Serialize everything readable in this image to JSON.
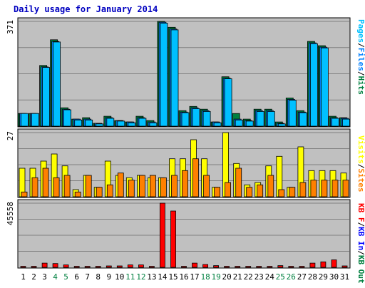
{
  "chart_data": {
    "type": "bar",
    "title": "Daily usage for January 2014",
    "categories": [
      "1",
      "2",
      "3",
      "4",
      "5",
      "6",
      "7",
      "8",
      "9",
      "10",
      "11",
      "12",
      "13",
      "14",
      "15",
      "16",
      "17",
      "18",
      "19",
      "20",
      "21",
      "22",
      "23",
      "24",
      "25",
      "26",
      "27",
      "28",
      "29",
      "30",
      "31"
    ],
    "weekend_days": [
      "4",
      "5",
      "11",
      "12",
      "18",
      "19",
      "25",
      "26"
    ],
    "panels": [
      {
        "name": "pages-files-hits",
        "ymax_label": "371",
        "ylim": [
          0,
          371
        ],
        "axis_labels": [
          "Pages",
          "Files",
          "Hits"
        ],
        "series": [
          {
            "name": "Hits",
            "color": "#008040",
            "values": [
              45,
              45,
              215,
              306,
              65,
              25,
              30,
              10,
              35,
              20,
              15,
              35,
              20,
              371,
              350,
              55,
              70,
              60,
              15,
              175,
              45,
              25,
              60,
              60,
              15,
              100,
              55,
              300,
              285,
              35,
              30
            ]
          },
          {
            "name": "Files",
            "color": "#0080ff",
            "values": [
              45,
              45,
              210,
              300,
              60,
              25,
              25,
              10,
              30,
              20,
              15,
              30,
              15,
              368,
              344,
              50,
              65,
              55,
              15,
              170,
              25,
              20,
              55,
              55,
              10,
              95,
              50,
              295,
              280,
              30,
              28
            ]
          },
          {
            "name": "Pages",
            "color": "#00c0ff",
            "values": [
              45,
              45,
              208,
              298,
              58,
              22,
              22,
              8,
              28,
              18,
              12,
              28,
              12,
              365,
              341,
              48,
              62,
              52,
              12,
              168,
              22,
              18,
              52,
              52,
              8,
              92,
              48,
              292,
              277,
              28,
              25
            ]
          }
        ]
      },
      {
        "name": "visits-sites",
        "ymax_label": "27",
        "ylim": [
          0,
          27
        ],
        "axis_labels": [
          "Visits",
          "Sites"
        ],
        "series": [
          {
            "name": "Visits",
            "color": "#ffff00",
            "values": [
              12,
              12,
              15,
              18,
              13,
              3,
              9,
              4,
              15,
              9,
              8,
              9,
              8,
              8,
              16,
              16,
              24,
              16,
              4,
              27,
              14,
              5,
              6,
              13,
              17,
              4,
              21,
              11,
              11,
              11,
              10
            ]
          },
          {
            "name": "Sites",
            "color": "#ff8000",
            "values": [
              2,
              8,
              12,
              8,
              9,
              2,
              9,
              4,
              5,
              10,
              7,
              9,
              9,
              8,
              9,
              11,
              16,
              9,
              4,
              6,
              12,
              4,
              5,
              9,
              3,
              4,
              6,
              7,
              7,
              7,
              7
            ]
          }
        ]
      },
      {
        "name": "kb",
        "ymax_label": "45558",
        "ylim": [
          0,
          45558
        ],
        "axis_labels": [
          "KB F",
          "KB In",
          "KB Out"
        ],
        "series": [
          {
            "name": "KB F",
            "color": "#ff0000",
            "values": [
              700,
              700,
              3000,
              2700,
              1700,
              700,
              700,
              700,
              1000,
              1000,
              1700,
              1700,
              700,
              45558,
              40000,
              700,
              3000,
              2000,
              1200,
              700,
              700,
              700,
              700,
              700,
              1200,
              700,
              700,
              3000,
              3900,
              5300,
              1000
            ]
          }
        ]
      }
    ],
    "grid": true,
    "grid_lines": 4
  }
}
